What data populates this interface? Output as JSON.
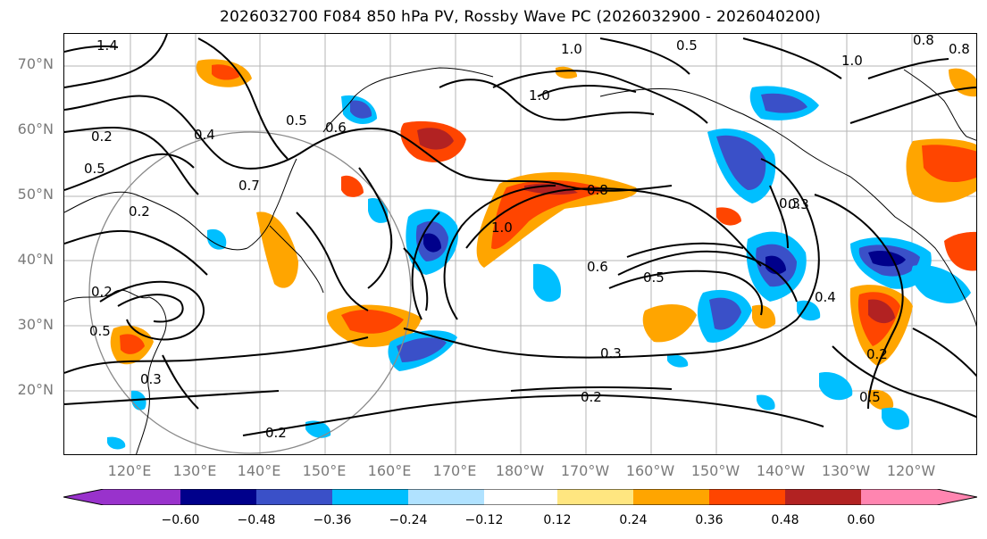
{
  "title": "2026032700 F084 850 hPa PV, Rossby Wave PC (2026032900 - 2026040200)",
  "lat_labels": [
    "70°N",
    "60°N",
    "50°N",
    "40°N",
    "30°N",
    "20°N"
  ],
  "lon_labels": [
    "120°E",
    "130°E",
    "140°E",
    "150°E",
    "160°E",
    "170°E",
    "180°W",
    "170°W",
    "160°W",
    "150°W",
    "140°W",
    "130°W",
    "120°W"
  ],
  "colorbar": {
    "ticks": [
      "−0.60",
      "−0.48",
      "−0.36",
      "−0.24",
      "−0.12",
      "0.12",
      "0.24",
      "0.36",
      "0.48",
      "0.60"
    ],
    "colors": [
      "#9932cc",
      "#00008b",
      "#3a50c8",
      "#00bfff",
      "#b0e2ff",
      "#ffffff",
      "#ffe680",
      "#ffa500",
      "#ff4500",
      "#b22222",
      "#ff85b0"
    ]
  },
  "contour_labels": [
    {
      "text": "1.4"
    },
    {
      "text": "1.0"
    },
    {
      "text": "0.5"
    },
    {
      "text": "1.0"
    },
    {
      "text": "0.8"
    },
    {
      "text": "0.5"
    },
    {
      "text": "0.6"
    },
    {
      "text": "0.2"
    },
    {
      "text": "0.5"
    },
    {
      "text": "0.4"
    },
    {
      "text": "0.2"
    },
    {
      "text": "1.0"
    },
    {
      "text": "0.8"
    },
    {
      "text": "0.7"
    },
    {
      "text": "0.6"
    },
    {
      "text": "0.5"
    },
    {
      "text": "0.3"
    },
    {
      "text": "0.4"
    },
    {
      "text": "0.3"
    },
    {
      "text": "0.2"
    },
    {
      "text": "0.5"
    },
    {
      "text": "0.2"
    },
    {
      "text": "0.3"
    },
    {
      "text": "0.2"
    },
    {
      "text": "0.2"
    },
    {
      "text": "0.5"
    },
    {
      "text": "0.3"
    },
    {
      "text": "0.8"
    },
    {
      "text": "1.0"
    }
  ]
}
